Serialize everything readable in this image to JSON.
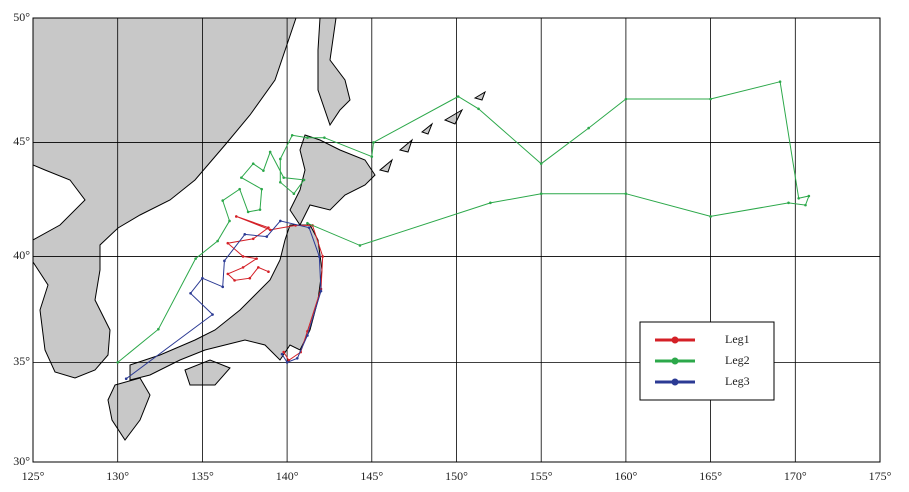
{
  "chart_data": {
    "type": "line",
    "projection": "mercator",
    "xlim": [
      125,
      175
    ],
    "ylim": [
      30,
      50
    ],
    "xticks": [
      {
        "value": 125,
        "label": "125°"
      },
      {
        "value": 130,
        "label": "130°"
      },
      {
        "value": 135,
        "label": "135°"
      },
      {
        "value": 140,
        "label": "140°"
      },
      {
        "value": 145,
        "label": "145°"
      },
      {
        "value": 150,
        "label": "150°"
      },
      {
        "value": 155,
        "label": "155°"
      },
      {
        "value": 160,
        "label": "160°"
      },
      {
        "value": 165,
        "label": "165°"
      },
      {
        "value": 170,
        "label": "170°"
      },
      {
        "value": 175,
        "label": "175°"
      }
    ],
    "yticks": [
      {
        "value": 30,
        "label": "30°"
      },
      {
        "value": 35,
        "label": "35°"
      },
      {
        "value": 40,
        "label": "40°"
      },
      {
        "value": 45,
        "label": "45°"
      },
      {
        "value": 50,
        "label": "50°"
      }
    ],
    "grid": true,
    "series": [
      {
        "name": "Leg1",
        "color": "#d42027",
        "x": [
          139.8,
          140.1,
          140.8,
          141.2,
          142.0,
          142.1,
          141.5,
          140.5,
          139.0,
          137.0,
          138.9,
          138.0,
          136.5,
          137.4,
          138.2,
          137.4,
          136.5,
          136.9,
          137.8,
          138.3,
          138.9
        ],
        "values": [
          35.5,
          35.1,
          35.5,
          36.5,
          38.5,
          40.0,
          41.4,
          41.4,
          41.2,
          41.8,
          41.3,
          40.8,
          40.6,
          40.0,
          39.9,
          39.5,
          39.2,
          38.9,
          39.0,
          39.5,
          39.3
        ]
      },
      {
        "name": "Leg2",
        "color": "#2ca84a",
        "x": [
          130.0,
          132.4,
          134.6,
          135.9,
          136.6,
          136.2,
          137.2,
          137.7,
          138.4,
          138.5,
          137.3,
          138.0,
          138.6,
          139.0,
          139.8,
          141.0,
          140.4,
          139.6,
          139.6,
          140.3,
          141.2,
          142.2,
          145.0,
          145.1,
          150.1,
          151.3,
          155.0,
          157.8,
          160.0,
          165.0,
          169.1,
          170.2,
          170.8,
          170.6,
          169.6,
          165.0,
          160.0,
          155.0,
          152.0,
          144.3,
          141.2
        ],
        "values": [
          35.0,
          36.6,
          39.9,
          40.7,
          41.6,
          42.5,
          43.0,
          42.0,
          42.1,
          43.0,
          43.5,
          44.1,
          43.8,
          44.6,
          43.5,
          43.4,
          42.8,
          43.3,
          44.3,
          45.3,
          45.2,
          45.2,
          44.4,
          45.0,
          46.9,
          46.4,
          44.1,
          45.6,
          46.8,
          46.8,
          47.5,
          42.6,
          42.7,
          42.3,
          42.4,
          41.8,
          42.8,
          42.8,
          42.4,
          40.5,
          41.5
        ]
      },
      {
        "name": "Leg3",
        "color": "#2b3a94",
        "x": [
          130.5,
          135.6,
          134.3,
          135.0,
          136.2,
          136.3,
          137.5,
          138.8,
          139.6,
          141.3,
          141.9,
          142.0,
          141.2,
          140.6,
          140.0,
          139.7
        ],
        "values": [
          34.2,
          37.3,
          38.3,
          39.0,
          38.6,
          39.8,
          41.0,
          40.9,
          41.6,
          41.3,
          40.0,
          38.4,
          36.3,
          35.2,
          35.0,
          35.4
        ]
      }
    ]
  }
}
